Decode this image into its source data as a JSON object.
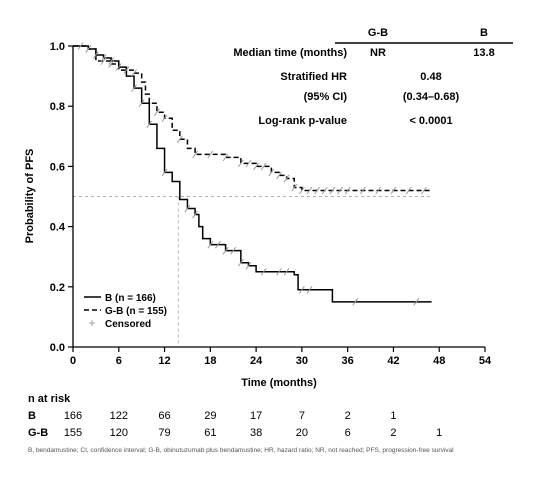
{
  "chart_data": {
    "type": "line",
    "xlabel": "Time (months)",
    "ylabel": "Probability of PFS",
    "xlim": [
      0,
      54
    ],
    "ylim": [
      0,
      1.0
    ],
    "xticks": [
      0,
      6,
      12,
      18,
      24,
      30,
      36,
      42,
      48,
      54
    ],
    "yticks": [
      0.0,
      0.2,
      0.4,
      0.6,
      0.8,
      1.0
    ],
    "tick_labels_y": [
      "0.0",
      "0.2",
      "0.4",
      "0.6",
      "0.8",
      "1.0"
    ],
    "reference_lines": {
      "y": 0.5,
      "x": 13.8
    },
    "series": [
      {
        "name": "B (n = 166)",
        "style": "solid",
        "points": [
          [
            0,
            1.0
          ],
          [
            2,
            0.99
          ],
          [
            3,
            0.97
          ],
          [
            4,
            0.96
          ],
          [
            5,
            0.95
          ],
          [
            6,
            0.93
          ],
          [
            7,
            0.9
          ],
          [
            8,
            0.86
          ],
          [
            9,
            0.81
          ],
          [
            10,
            0.74
          ],
          [
            11,
            0.66
          ],
          [
            12,
            0.58
          ],
          [
            13,
            0.55
          ],
          [
            14,
            0.49
          ],
          [
            15,
            0.46
          ],
          [
            16,
            0.44
          ],
          [
            16.5,
            0.4
          ],
          [
            17,
            0.36
          ],
          [
            18,
            0.34
          ],
          [
            20,
            0.32
          ],
          [
            22,
            0.28
          ],
          [
            23,
            0.27
          ],
          [
            24,
            0.25
          ],
          [
            29,
            0.24
          ],
          [
            29.5,
            0.19
          ],
          [
            34,
            0.19
          ],
          [
            34,
            0.15
          ],
          [
            47,
            0.15
          ]
        ],
        "censored_x": [
          2,
          3,
          4,
          5,
          6,
          8,
          9,
          10,
          12,
          15,
          16,
          18,
          19,
          20,
          21,
          22,
          23,
          25,
          27,
          28,
          30,
          31,
          37,
          45
        ]
      },
      {
        "name": "G-B (n = 155)",
        "style": "dashed",
        "points": [
          [
            0,
            1.0
          ],
          [
            2,
            0.99
          ],
          [
            3,
            0.95
          ],
          [
            5,
            0.94
          ],
          [
            6,
            0.92
          ],
          [
            8,
            0.91
          ],
          [
            9,
            0.88
          ],
          [
            9.5,
            0.84
          ],
          [
            10,
            0.81
          ],
          [
            11,
            0.78
          ],
          [
            12,
            0.76
          ],
          [
            13,
            0.72
          ],
          [
            14,
            0.69
          ],
          [
            15,
            0.66
          ],
          [
            16,
            0.64
          ],
          [
            20,
            0.63
          ],
          [
            22,
            0.61
          ],
          [
            24,
            0.6
          ],
          [
            26,
            0.58
          ],
          [
            27,
            0.57
          ],
          [
            28,
            0.56
          ],
          [
            29,
            0.53
          ],
          [
            30,
            0.52
          ],
          [
            47,
            0.52
          ]
        ],
        "censored_x": [
          1,
          2,
          4,
          5,
          7,
          8,
          11,
          12,
          14,
          16,
          18,
          20,
          22,
          23,
          24,
          25,
          26,
          27,
          28,
          29,
          30,
          31,
          32,
          33,
          34,
          35,
          36,
          38,
          40,
          42,
          44,
          46
        ]
      }
    ],
    "legend": {
      "placement": "bottom-left",
      "entries": [
        "B (n = 166)",
        "G-B (n = 155)",
        "Censored"
      ]
    },
    "stats_table": {
      "headers": [
        "G-B",
        "B"
      ],
      "rows": [
        {
          "label": "Median time (months)",
          "values": [
            "NR",
            "13.8"
          ]
        },
        {
          "label": "Stratified HR",
          "values": [
            "0.48"
          ]
        },
        {
          "label": "(95% CI)",
          "values": [
            "(0.34–0.68)"
          ]
        },
        {
          "label": "Log-rank p-value",
          "values": [
            "< 0.0001"
          ]
        }
      ]
    },
    "risk_table": {
      "title": "n at risk",
      "rows": [
        {
          "label": "B",
          "values": [
            "166",
            "122",
            "66",
            "29",
            "17",
            "7",
            "2",
            "1"
          ]
        },
        {
          "label": "G-B",
          "values": [
            "155",
            "120",
            "79",
            "61",
            "38",
            "20",
            "6",
            "2",
            "1"
          ]
        }
      ]
    },
    "footnote": "B, bendamustine; CI, confidence interval; G-B, obinutuzumab plus bendamustine; HR, hazard ratio; NR, not reached; PFS, progression-free survival"
  },
  "colors": {
    "line": "#000000",
    "censor": "#9a9a9a",
    "reference": "#b0b0b0"
  }
}
